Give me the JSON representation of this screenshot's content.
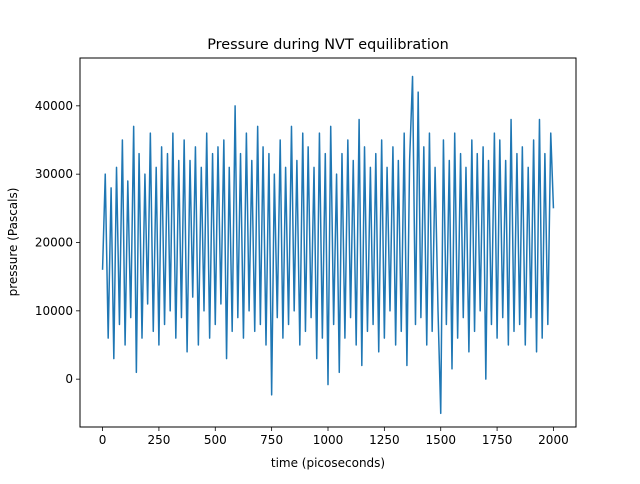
{
  "chart_data": {
    "type": "line",
    "title": "Pressure during NVT equilibration",
    "xlabel": "time (picoseconds)",
    "ylabel": "pressure (Pascals)",
    "xlim": [
      -100,
      2100
    ],
    "ylim": [
      -7000,
      47000
    ],
    "x_ticks": [
      0,
      250,
      500,
      750,
      1000,
      1250,
      1500,
      1750,
      2000
    ],
    "x_tick_labels": [
      "0",
      "250",
      "500",
      "750",
      "1000",
      "1250",
      "1500",
      "1750",
      "2000"
    ],
    "y_ticks": [
      0,
      10000,
      20000,
      30000,
      40000
    ],
    "y_tick_labels": [
      "0",
      "10000",
      "20000",
      "30000",
      "40000"
    ],
    "grid": false,
    "series": [
      {
        "color": "#1f77b4",
        "x": [
          0,
          12,
          25,
          38,
          50,
          62,
          75,
          88,
          100,
          112,
          125,
          138,
          150,
          162,
          175,
          188,
          200,
          212,
          225,
          238,
          250,
          262,
          275,
          288,
          300,
          312,
          325,
          338,
          350,
          362,
          375,
          388,
          400,
          412,
          425,
          438,
          450,
          462,
          475,
          488,
          500,
          512,
          525,
          538,
          550,
          562,
          575,
          588,
          600,
          612,
          625,
          638,
          650,
          662,
          675,
          688,
          700,
          712,
          725,
          738,
          750,
          762,
          775,
          788,
          800,
          812,
          825,
          838,
          850,
          862,
          875,
          888,
          900,
          912,
          925,
          938,
          950,
          962,
          975,
          988,
          1000,
          1012,
          1025,
          1038,
          1050,
          1062,
          1075,
          1088,
          1100,
          1112,
          1125,
          1138,
          1150,
          1162,
          1175,
          1188,
          1200,
          1212,
          1225,
          1238,
          1250,
          1262,
          1275,
          1288,
          1300,
          1312,
          1325,
          1338,
          1350,
          1362,
          1375,
          1388,
          1400,
          1412,
          1425,
          1438,
          1450,
          1462,
          1475,
          1488,
          1500,
          1512,
          1525,
          1538,
          1550,
          1562,
          1575,
          1588,
          1600,
          1612,
          1625,
          1638,
          1650,
          1662,
          1675,
          1688,
          1700,
          1712,
          1725,
          1738,
          1750,
          1762,
          1775,
          1788,
          1800,
          1812,
          1825,
          1838,
          1850,
          1862,
          1875,
          1888,
          1900,
          1912,
          1925,
          1938,
          1950,
          1962,
          1975,
          1988,
          2000
        ],
        "y": [
          16000,
          30000,
          6000,
          28000,
          3000,
          31000,
          8000,
          35000,
          5000,
          29000,
          9000,
          37000,
          1000,
          33000,
          6000,
          30000,
          11000,
          36000,
          7000,
          31000,
          5000,
          34000,
          8000,
          33000,
          10000,
          36000,
          6000,
          32000,
          9000,
          35000,
          4000,
          32000,
          12000,
          34000,
          5000,
          31000,
          10000,
          36000,
          6000,
          33000,
          8000,
          34000,
          11000,
          35000,
          3000,
          31000,
          7000,
          40000,
          9000,
          33000,
          6000,
          36000,
          10000,
          32000,
          7000,
          37000,
          8000,
          34000,
          5000,
          33000,
          -2300,
          30000,
          9000,
          35000,
          6000,
          31000,
          8000,
          37000,
          10000,
          32000,
          5000,
          36000,
          7000,
          34000,
          9000,
          31000,
          3000,
          36000,
          6000,
          33000,
          -800,
          37000,
          8000,
          30000,
          1000,
          33000,
          6000,
          35000,
          9000,
          32000,
          5000,
          38000,
          2000,
          34000,
          7000,
          31000,
          8000,
          33000,
          4000,
          35000,
          6000,
          31000,
          10000,
          34000,
          5000,
          32000,
          7000,
          36000,
          2000,
          32000,
          44300,
          8000,
          42000,
          9000,
          34000,
          5000,
          36000,
          7000,
          31000,
          10000,
          -5000,
          35000,
          8000,
          32000,
          1500,
          36000,
          6000,
          33000,
          9000,
          31000,
          4000,
          35000,
          7000,
          33000,
          10000,
          34000,
          0,
          32000,
          8000,
          36000,
          6000,
          35000,
          9000,
          32000,
          5000,
          38000,
          7000,
          33000,
          8000,
          34000,
          5000,
          31000,
          9000,
          35000,
          4000,
          38000,
          6000,
          33000,
          8000,
          36000,
          25000
        ]
      }
    ]
  }
}
